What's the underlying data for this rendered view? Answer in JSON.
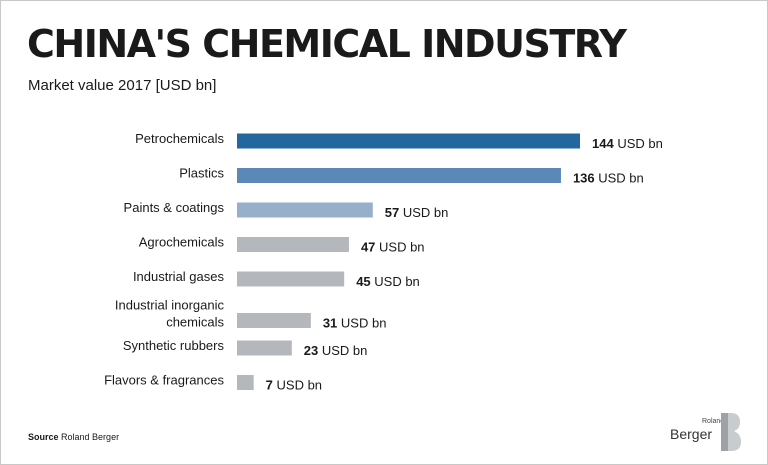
{
  "header": {
    "title": "CHINA'S CHEMICAL INDUSTRY",
    "subtitle": "Market value 2017 [USD bn]"
  },
  "footer": {
    "source_label": "Source",
    "source_text": "Roland Berger"
  },
  "logo": {
    "small_text": "Roland",
    "big_text": "Berger"
  },
  "colors": {
    "top1": "#23679e",
    "top2": "#5b88b6",
    "top3": "#97afcb",
    "others": "#b4b8bc"
  },
  "chart_data": {
    "type": "bar",
    "orientation": "horizontal",
    "title": "CHINA'S CHEMICAL INDUSTRY",
    "subtitle": "Market value 2017 [USD bn]",
    "unit": "USD bn",
    "grid": false,
    "categories": [
      "Petrochemicals",
      "Plastics",
      "Paints & coatings",
      "Agrochemicals",
      "Industrial gases",
      "Industrial inorganic chemicals",
      "Synthetic rubbers",
      "Flavors & fragrances"
    ],
    "values": [
      144,
      136,
      57,
      47,
      45,
      31,
      23,
      7
    ],
    "xlim": [
      0,
      144
    ]
  }
}
